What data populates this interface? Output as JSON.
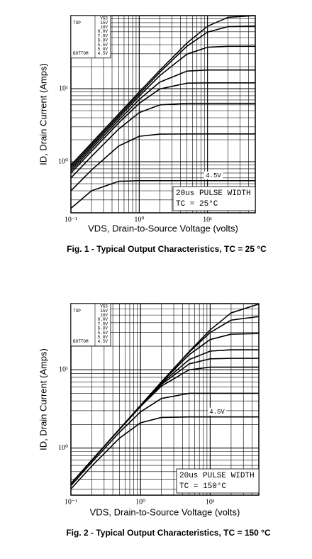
{
  "chart_data": [
    {
      "type": "line",
      "caption": "Fig. 1 - Typical Output Characteristics, TC = 25 °C",
      "xlabel": "VDS, Drain-to-Source Voltage (volts)",
      "ylabel": "ID, Drain Current (Amps)",
      "log_x": true,
      "log_y": true,
      "grid": true,
      "minor_grid": true,
      "legend": "upper left",
      "legend_title": "VGS",
      "legend_top": "TOP",
      "legend_bottom": "BOTTOM",
      "annotations": [
        "20us PULSE WIDTH",
        "TC = 25°C"
      ],
      "xlim": [
        0.1,
        50
      ],
      "ylim": [
        0.2,
        100
      ],
      "xticks": [
        {
          "value": 0.1,
          "label": "10⁻¹"
        },
        {
          "value": 1,
          "label": "10⁰"
        },
        {
          "value": 10,
          "label": "10¹"
        }
      ],
      "yticks": [
        {
          "value": 1,
          "label": "10⁰"
        },
        {
          "value": 10,
          "label": "10¹"
        }
      ],
      "x": [
        0.1,
        0.2,
        0.5,
        1,
        2,
        5,
        10,
        20,
        50
      ],
      "series": [
        {
          "name": "15V",
          "color": "#000000",
          "values": [
            0.9,
            1.8,
            4.5,
            9.0,
            17.8,
            42.2,
            71.6,
            94.7,
            100
          ]
        },
        {
          "name": "10V",
          "color": "#000000",
          "values": [
            0.85,
            1.7,
            4.25,
            8.46,
            16.7,
            38.2,
            59.5,
            70.7,
            72
          ]
        },
        {
          "name": "8.0V",
          "color": "#000000",
          "values": [
            0.8,
            1.6,
            3.99,
            7.9,
            15.1,
            29.7,
            36.9,
            38,
            38
          ]
        },
        {
          "name": "7.0V",
          "color": "#000000",
          "values": [
            0.75,
            1.5,
            3.7,
            7.1,
            12.3,
            17.4,
            18,
            18,
            18
          ]
        },
        {
          "name": "6.0V",
          "color": "#000000",
          "values": [
            0.7,
            1.39,
            3.4,
            6.3,
            9.9,
            11.9,
            12,
            12,
            12
          ]
        },
        {
          "name": "5.5V",
          "color": "#000000",
          "values": [
            0.6,
            1.18,
            2.8,
            4.7,
            6.0,
            6.3,
            6.3,
            6.3,
            6.3
          ]
        },
        {
          "name": "5.0V",
          "color": "#000000",
          "values": [
            0.4,
            0.77,
            1.64,
            2.23,
            2.39,
            2.4,
            2.4,
            2.4,
            2.4
          ]
        },
        {
          "name": "4.5V",
          "color": "#000000",
          "values": [
            0.23,
            0.4,
            0.54,
            0.55,
            0.55,
            0.55,
            0.55,
            0.55,
            0.55
          ]
        }
      ]
    },
    {
      "type": "line",
      "caption": "Fig. 2 - Typical Output Characteristics, TC = 150 °C",
      "xlabel": "VDS, Drain-to-Source Voltage (volts)",
      "ylabel": "ID, Drain Current (Amps)",
      "log_x": true,
      "log_y": true,
      "grid": true,
      "minor_grid": true,
      "legend": "upper left",
      "legend_title": "VGS",
      "legend_top": "TOP",
      "legend_bottom": "BOTTOM",
      "annotations": [
        "20us PULSE WIDTH",
        "TC = 150°C"
      ],
      "xlim": [
        0.1,
        50
      ],
      "ylim": [
        0.25,
        70
      ],
      "xticks": [
        {
          "value": 0.1,
          "label": "10⁻¹"
        },
        {
          "value": 1,
          "label": "10⁰"
        },
        {
          "value": 10,
          "label": "10¹"
        }
      ],
      "yticks": [
        {
          "value": 1,
          "label": "10⁰"
        },
        {
          "value": 10,
          "label": "10¹"
        }
      ],
      "x": [
        0.1,
        0.2,
        0.5,
        1,
        2,
        5,
        10,
        20,
        50
      ],
      "series": [
        {
          "name": "15V",
          "color": "#000000",
          "values": [
            0.35,
            0.7,
            1.75,
            3.5,
            7.0,
            17.1,
            32.3,
            53.3,
            69.1
          ]
        },
        {
          "name": "10V",
          "color": "#000000",
          "values": [
            0.35,
            0.7,
            1.75,
            3.5,
            7.0,
            16.8,
            29.9,
            43.1,
            47.9
          ]
        },
        {
          "name": "8.0V",
          "color": "#000000",
          "values": [
            0.35,
            0.7,
            1.75,
            3.46,
            6.9,
            15.6,
            24.3,
            28.5,
            29
          ]
        },
        {
          "name": "7.0V",
          "color": "#000000",
          "values": [
            0.35,
            0.7,
            1.74,
            3.45,
            6.7,
            13.5,
            17.3,
            18,
            18
          ]
        },
        {
          "name": "6.0V",
          "color": "#000000",
          "values": [
            0.35,
            0.7,
            1.74,
            3.4,
            6.5,
            11.9,
            13.8,
            14,
            14
          ]
        },
        {
          "name": "5.5V",
          "color": "#000000",
          "values": [
            0.35,
            0.7,
            1.73,
            3.4,
            6.2,
            10.0,
            10.8,
            10.8,
            10.8
          ]
        },
        {
          "name": "5.0V",
          "color": "#000000",
          "values": [
            0.33,
            0.66,
            1.59,
            2.9,
            4.3,
            5.0,
            5.0,
            5.0,
            5.0
          ]
        },
        {
          "name": "4.5V",
          "color": "#000000",
          "values": [
            0.3,
            0.59,
            1.34,
            2.1,
            2.46,
            2.5,
            2.5,
            2.5,
            2.5
          ]
        }
      ]
    }
  ]
}
